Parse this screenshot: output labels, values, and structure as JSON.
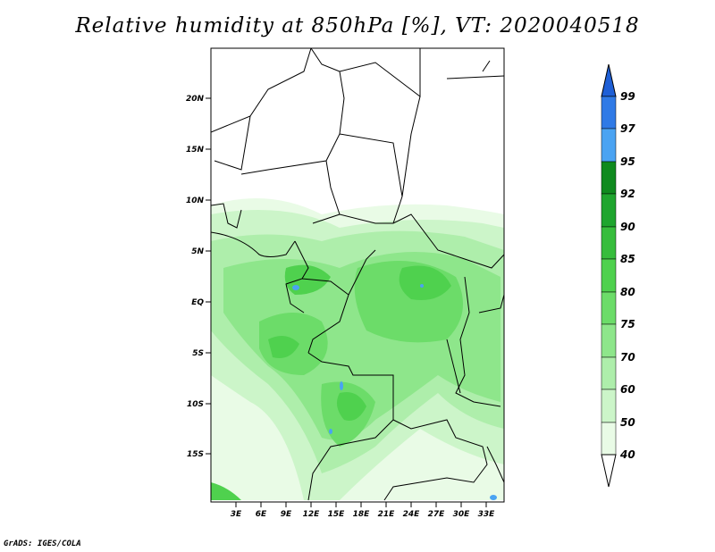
{
  "title": "Relative humidity at 850hPa [%], VT: 2020040518",
  "credit": "GrADS: IGES/COLA",
  "map": {
    "lat_labels": [
      "20N",
      "15N",
      "10N",
      "5N",
      "EQ",
      "5S",
      "10S",
      "15S"
    ],
    "lon_labels": [
      "3E",
      "6E",
      "9E",
      "12E",
      "15E",
      "18E",
      "21E",
      "24E",
      "27E",
      "30E",
      "33E"
    ]
  },
  "colorbar": {
    "levels": [
      "99",
      "97",
      "95",
      "92",
      "90",
      "85",
      "80",
      "75",
      "70",
      "60",
      "50",
      "40"
    ],
    "colors": [
      "#1e5fd6",
      "#2f7ae6",
      "#4aa3f2",
      "#0f8a1e",
      "#1fa52e",
      "#37bd3c",
      "#4fd14e",
      "#6cdc69",
      "#8ee68b",
      "#aeeeab",
      "#ccf5c9",
      "#e9fbe6",
      "#ffffff"
    ]
  }
}
